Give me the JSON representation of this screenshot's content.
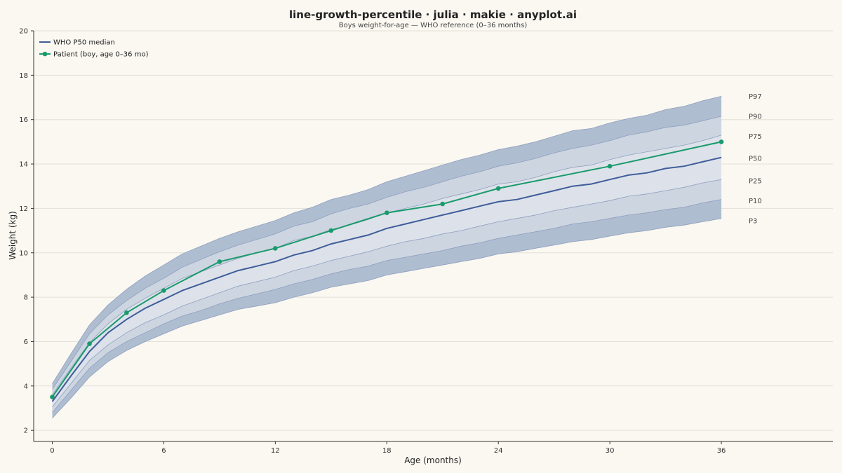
{
  "chart_data": {
    "type": "line",
    "title": "line-growth-percentile · julia · makie · anyplot.ai",
    "subtitle": "Boys weight-for-age — WHO reference (0–36 months)",
    "xlabel": "Age (months)",
    "ylabel": "Weight (kg)",
    "xlim": [
      -1,
      42
    ],
    "ylim": [
      1.5,
      20
    ],
    "xticks": [
      0,
      6,
      12,
      18,
      24,
      30,
      36
    ],
    "yticks": [
      2,
      4,
      6,
      8,
      10,
      12,
      14,
      16,
      18,
      20
    ],
    "grid": true,
    "legend_position": "top-left",
    "colors": {
      "outer_band": "#AFBDD1",
      "mid_band": "#CDD5E1",
      "inner_band": "#DDE2EA",
      "band_edge": "#8E9FBE",
      "median": "#3F5D9A",
      "patient": "#1A9A6C",
      "grid": "#E3E0D8",
      "axis": "#333333"
    },
    "percentile_x": [
      0,
      1,
      2,
      3,
      4,
      5,
      6,
      7,
      8,
      9,
      10,
      11,
      12,
      13,
      14,
      15,
      16,
      17,
      18,
      19,
      20,
      21,
      22,
      23,
      24,
      25,
      26,
      27,
      28,
      29,
      30,
      31,
      32,
      33,
      34,
      35,
      36
    ],
    "percentile_bands": [
      {
        "name": "P3",
        "values": [
          2.55,
          3.45,
          4.4,
          5.1,
          5.6,
          6.0,
          6.35,
          6.7,
          6.95,
          7.2,
          7.45,
          7.6,
          7.75,
          8.0,
          8.2,
          8.45,
          8.6,
          8.75,
          9.0,
          9.15,
          9.3,
          9.45,
          9.6,
          9.75,
          9.95,
          10.05,
          10.2,
          10.35,
          10.5,
          10.6,
          10.75,
          10.9,
          11.0,
          11.15,
          11.25,
          11.4,
          11.55
        ]
      },
      {
        "name": "P10",
        "values": [
          2.8,
          3.8,
          4.8,
          5.5,
          6.0,
          6.4,
          6.8,
          7.15,
          7.4,
          7.7,
          7.95,
          8.15,
          8.35,
          8.6,
          8.8,
          9.05,
          9.25,
          9.4,
          9.65,
          9.8,
          9.95,
          10.1,
          10.3,
          10.45,
          10.65,
          10.8,
          10.95,
          11.1,
          11.3,
          11.4,
          11.55,
          11.7,
          11.8,
          11.95,
          12.05,
          12.25,
          12.4
        ]
      },
      {
        "name": "P25",
        "values": [
          3.05,
          4.1,
          5.15,
          5.85,
          6.4,
          6.85,
          7.2,
          7.6,
          7.9,
          8.2,
          8.5,
          8.7,
          8.9,
          9.2,
          9.4,
          9.65,
          9.85,
          10.05,
          10.3,
          10.5,
          10.65,
          10.85,
          11.0,
          11.2,
          11.4,
          11.55,
          11.7,
          11.9,
          12.05,
          12.2,
          12.35,
          12.55,
          12.65,
          12.8,
          12.95,
          13.15,
          13.3
        ]
      },
      {
        "name": "P50",
        "values": [
          3.3,
          4.45,
          5.55,
          6.4,
          7.0,
          7.5,
          7.9,
          8.3,
          8.6,
          8.9,
          9.2,
          9.4,
          9.6,
          9.9,
          10.1,
          10.4,
          10.6,
          10.8,
          11.1,
          11.3,
          11.5,
          11.7,
          11.9,
          12.1,
          12.3,
          12.4,
          12.6,
          12.8,
          13.0,
          13.1,
          13.3,
          13.5,
          13.6,
          13.8,
          13.9,
          14.1,
          14.3
        ]
      },
      {
        "name": "P75",
        "values": [
          3.6,
          4.8,
          5.95,
          6.8,
          7.45,
          7.95,
          8.4,
          8.85,
          9.15,
          9.45,
          9.75,
          10.0,
          10.2,
          10.55,
          10.75,
          11.05,
          11.25,
          11.5,
          11.8,
          12.0,
          12.2,
          12.45,
          12.65,
          12.85,
          13.1,
          13.2,
          13.4,
          13.65,
          13.85,
          13.95,
          14.2,
          14.4,
          14.55,
          14.7,
          14.85,
          15.05,
          15.3
        ]
      },
      {
        "name": "P90",
        "values": [
          3.85,
          5.1,
          6.35,
          7.2,
          7.85,
          8.4,
          8.85,
          9.35,
          9.7,
          10.05,
          10.35,
          10.6,
          10.85,
          11.2,
          11.4,
          11.75,
          12.0,
          12.2,
          12.5,
          12.75,
          12.95,
          13.2,
          13.45,
          13.65,
          13.9,
          14.05,
          14.25,
          14.5,
          14.7,
          14.85,
          15.05,
          15.3,
          15.45,
          15.65,
          15.75,
          15.95,
          16.15
        ]
      },
      {
        "name": "P97",
        "values": [
          4.1,
          5.45,
          6.75,
          7.65,
          8.35,
          8.95,
          9.45,
          9.95,
          10.3,
          10.65,
          10.95,
          11.2,
          11.45,
          11.8,
          12.05,
          12.4,
          12.6,
          12.85,
          13.2,
          13.45,
          13.7,
          13.95,
          14.2,
          14.4,
          14.65,
          14.8,
          15.0,
          15.25,
          15.5,
          15.6,
          15.85,
          16.05,
          16.2,
          16.45,
          16.6,
          16.85,
          17.05
        ]
      }
    ],
    "series": [
      {
        "name": "WHO P50 median",
        "x": [
          0,
          1,
          2,
          3,
          4,
          5,
          6,
          7,
          8,
          9,
          10,
          11,
          12,
          13,
          14,
          15,
          16,
          17,
          18,
          19,
          20,
          21,
          22,
          23,
          24,
          25,
          26,
          27,
          28,
          29,
          30,
          31,
          32,
          33,
          34,
          35,
          36
        ],
        "values": [
          3.3,
          4.45,
          5.55,
          6.4,
          7.0,
          7.5,
          7.9,
          8.3,
          8.6,
          8.9,
          9.2,
          9.4,
          9.6,
          9.9,
          10.1,
          10.4,
          10.6,
          10.8,
          11.1,
          11.3,
          11.5,
          11.7,
          11.9,
          12.1,
          12.3,
          12.4,
          12.6,
          12.8,
          13.0,
          13.1,
          13.3,
          13.5,
          13.6,
          13.8,
          13.9,
          14.1,
          14.3
        ]
      },
      {
        "name": "Patient (boy, age 0–36 mo)",
        "x": [
          0,
          2,
          4,
          6,
          9,
          12,
          15,
          18,
          21,
          24,
          30,
          36
        ],
        "values": [
          3.5,
          5.9,
          7.3,
          8.3,
          9.6,
          10.2,
          11.0,
          11.8,
          12.2,
          12.9,
          13.9,
          15.0
        ]
      }
    ],
    "percentile_labels": [
      {
        "text": "P97",
        "y": 17.05
      },
      {
        "text": "P90",
        "y": 16.15
      },
      {
        "text": "P75",
        "y": 15.25
      },
      {
        "text": "P50",
        "y": 14.25
      },
      {
        "text": "P25",
        "y": 13.25
      },
      {
        "text": "P10",
        "y": 12.35
      },
      {
        "text": "P3",
        "y": 11.45
      }
    ]
  }
}
